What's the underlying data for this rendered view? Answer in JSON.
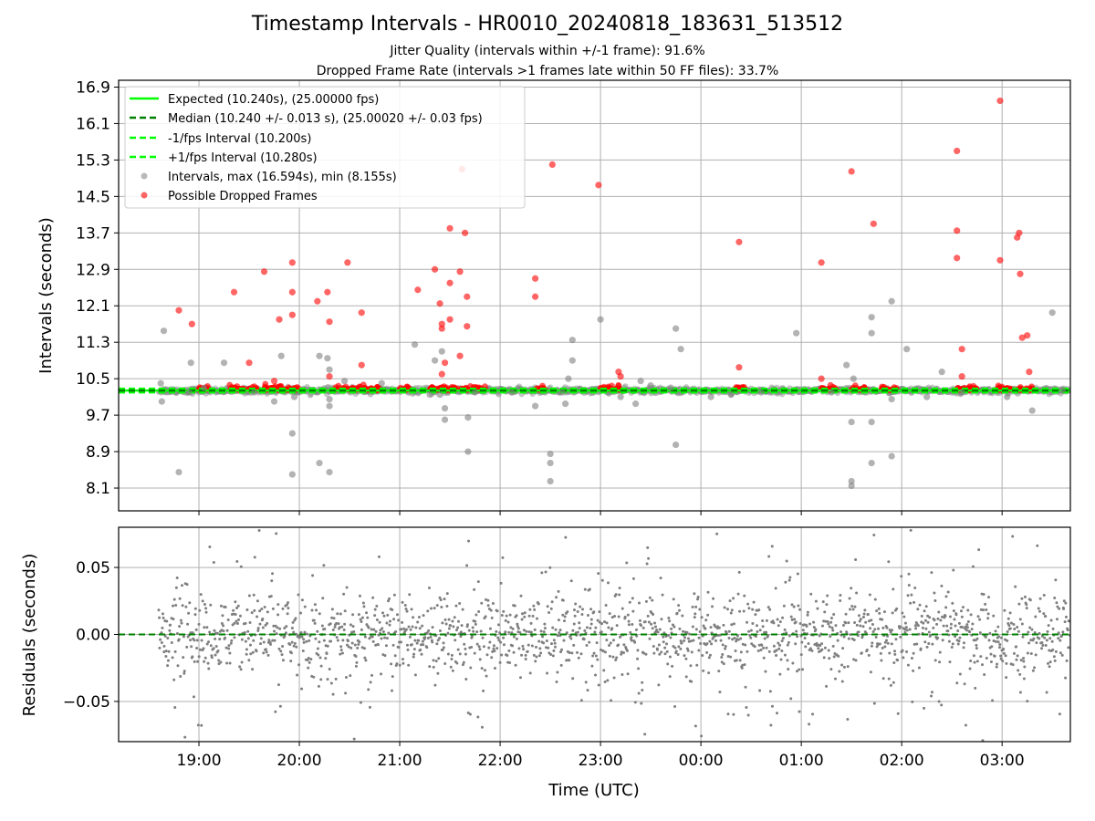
{
  "title": "Timestamp Intervals - HR0010_20240818_183631_513512",
  "subtitle_1": "Jitter Quality (intervals within +/-1 frame): 91.6%",
  "subtitle_2": "Dropped Frame Rate (intervals >1 frames late within 50 FF files): 33.7%",
  "colors": {
    "expected": "#00ff00",
    "median": "#008000",
    "interval_bounds": "#00ff00",
    "intervals": "#808080",
    "dropped": "#ff0000",
    "residuals": "#7f7f7f",
    "grid": "#b0b0b0"
  },
  "chart_data": [
    {
      "type": "scatter",
      "name": "intervals",
      "xlabel": "",
      "ylabel": "Intervals (seconds)",
      "x_range_hours": [
        18.2,
        27.68
      ],
      "ylim": [
        7.6,
        17.05
      ],
      "y_ticks": [
        "8.1",
        "8.9",
        "9.7",
        "10.5",
        "11.3",
        "12.1",
        "12.9",
        "13.7",
        "14.5",
        "15.3",
        "16.1",
        "16.9"
      ],
      "grid": true,
      "legend_position": "upper-left",
      "legend": [
        "Expected (10.240s), (25.00000 fps)",
        "Median (10.240 +/- 0.013 s), (25.00020 +/- 0.03 fps)",
        "-1/fps Interval (10.200s)",
        "+1/fps Interval (10.280s)",
        "Intervals, max (16.594s), min (8.155s)",
        "Possible Dropped Frames"
      ],
      "lines": {
        "expected": 10.24,
        "median": 10.24,
        "minus_1_fps": 10.2,
        "plus_1_fps": 10.28
      },
      "intervals_outliers": [
        [
          18.65,
          11.55
        ],
        [
          18.62,
          10.4
        ],
        [
          18.63,
          10.0
        ],
        [
          18.8,
          8.45
        ],
        [
          18.92,
          10.85
        ],
        [
          18.9,
          10.2
        ],
        [
          19.25,
          10.85
        ],
        [
          19.05,
          10.3
        ],
        [
          19.55,
          10.2
        ],
        [
          19.82,
          11.0
        ],
        [
          19.75,
          10.0
        ],
        [
          19.93,
          9.3
        ],
        [
          19.93,
          8.4
        ],
        [
          19.95,
          10.1
        ],
        [
          20.2,
          11.0
        ],
        [
          20.28,
          10.95
        ],
        [
          20.3,
          10.7
        ],
        [
          20.3,
          9.9
        ],
        [
          20.2,
          8.65
        ],
        [
          20.3,
          8.45
        ],
        [
          20.3,
          10.05
        ],
        [
          20.45,
          10.45
        ],
        [
          20.82,
          10.4
        ],
        [
          21.15,
          11.25
        ],
        [
          21.3,
          10.15
        ],
        [
          21.35,
          10.9
        ],
        [
          21.4,
          10.15
        ],
        [
          21.45,
          9.85
        ],
        [
          21.45,
          9.6
        ],
        [
          21.42,
          11.1
        ],
        [
          21.68,
          9.65
        ],
        [
          21.68,
          8.9
        ],
        [
          21.75,
          10.2
        ],
        [
          22.12,
          10.2
        ],
        [
          22.35,
          9.9
        ],
        [
          22.5,
          8.65
        ],
        [
          22.5,
          8.85
        ],
        [
          22.5,
          8.25
        ],
        [
          22.62,
          10.2
        ],
        [
          22.65,
          9.95
        ],
        [
          22.68,
          10.5
        ],
        [
          22.72,
          10.9
        ],
        [
          22.72,
          11.35
        ],
        [
          23.0,
          11.8
        ],
        [
          23.2,
          10.1
        ],
        [
          23.35,
          9.95
        ],
        [
          23.4,
          10.45
        ],
        [
          23.5,
          10.35
        ],
        [
          23.7,
          10.3
        ],
        [
          23.75,
          9.05
        ],
        [
          23.75,
          11.6
        ],
        [
          23.8,
          11.15
        ],
        [
          24.1,
          10.1
        ],
        [
          24.3,
          10.15
        ],
        [
          24.6,
          10.2
        ],
        [
          24.95,
          11.5
        ],
        [
          25.3,
          10.2
        ],
        [
          25.45,
          10.8
        ],
        [
          25.5,
          9.55
        ],
        [
          25.5,
          8.25
        ],
        [
          25.5,
          8.15
        ],
        [
          25.52,
          10.5
        ],
        [
          25.7,
          11.85
        ],
        [
          25.7,
          11.5
        ],
        [
          25.7,
          9.55
        ],
        [
          25.7,
          8.65
        ],
        [
          25.9,
          10.05
        ],
        [
          25.9,
          8.8
        ],
        [
          25.9,
          12.2
        ],
        [
          26.05,
          11.15
        ],
        [
          26.25,
          10.1
        ],
        [
          26.4,
          10.65
        ],
        [
          26.6,
          10.2
        ],
        [
          27.05,
          10.1
        ],
        [
          27.3,
          9.8
        ],
        [
          27.5,
          11.95
        ],
        [
          27.6,
          10.25
        ]
      ],
      "dropped_outliers": [
        [
          18.8,
          12.0
        ],
        [
          18.93,
          11.7
        ],
        [
          19.35,
          12.4
        ],
        [
          19.5,
          10.85
        ],
        [
          19.65,
          12.85
        ],
        [
          19.75,
          10.45
        ],
        [
          19.8,
          11.8
        ],
        [
          19.93,
          13.05
        ],
        [
          19.93,
          12.4
        ],
        [
          19.93,
          11.9
        ],
        [
          20.18,
          12.2
        ],
        [
          20.28,
          12.4
        ],
        [
          20.3,
          11.75
        ],
        [
          20.3,
          10.55
        ],
        [
          20.48,
          13.05
        ],
        [
          20.62,
          11.95
        ],
        [
          20.62,
          10.8
        ],
        [
          21.18,
          12.45
        ],
        [
          21.4,
          12.15
        ],
        [
          21.42,
          11.7
        ],
        [
          21.42,
          11.6
        ],
        [
          21.45,
          10.85
        ],
        [
          21.42,
          10.6
        ],
        [
          21.35,
          12.9
        ],
        [
          21.5,
          13.8
        ],
        [
          21.5,
          12.6
        ],
        [
          21.5,
          11.8
        ],
        [
          21.6,
          11.0
        ],
        [
          21.6,
          12.85
        ],
        [
          21.62,
          15.1
        ],
        [
          21.65,
          13.7
        ],
        [
          21.67,
          12.3
        ],
        [
          21.67,
          11.65
        ],
        [
          22.35,
          12.7
        ],
        [
          22.35,
          12.3
        ],
        [
          22.52,
          15.2
        ],
        [
          22.98,
          14.75
        ],
        [
          23.18,
          10.65
        ],
        [
          23.2,
          10.55
        ],
        [
          24.38,
          13.5
        ],
        [
          24.38,
          10.75
        ],
        [
          25.2,
          13.05
        ],
        [
          25.2,
          10.5
        ],
        [
          25.5,
          15.05
        ],
        [
          25.72,
          13.9
        ],
        [
          26.55,
          15.5
        ],
        [
          26.55,
          13.75
        ],
        [
          26.55,
          13.15
        ],
        [
          26.6,
          11.15
        ],
        [
          26.6,
          10.55
        ],
        [
          26.98,
          16.6
        ],
        [
          26.98,
          13.1
        ],
        [
          27.15,
          13.6
        ],
        [
          27.17,
          13.7
        ],
        [
          27.18,
          12.8
        ],
        [
          27.2,
          11.4
        ],
        [
          27.25,
          11.45
        ],
        [
          27.27,
          10.65
        ]
      ],
      "dropped_clusters": [
        [
          19.0,
          19.1
        ],
        [
          19.3,
          19.45
        ],
        [
          19.5,
          19.6
        ],
        [
          19.65,
          20.0
        ],
        [
          20.35,
          20.8
        ],
        [
          21.0,
          21.1
        ],
        [
          21.3,
          21.85
        ],
        [
          22.35,
          22.45
        ],
        [
          23.0,
          23.2
        ],
        [
          24.35,
          24.45
        ],
        [
          25.2,
          25.35
        ],
        [
          25.5,
          25.65
        ],
        [
          25.8,
          25.95
        ],
        [
          26.55,
          26.75
        ],
        [
          26.95,
          27.3
        ]
      ],
      "data_span_hours": [
        18.6,
        27.68
      ]
    },
    {
      "type": "scatter",
      "name": "residuals",
      "xlabel": "Time (UTC)",
      "ylabel": "Residuals (seconds)",
      "x_range_hours": [
        18.2,
        27.68
      ],
      "ylim": [
        -0.08,
        0.08
      ],
      "y_ticks": [
        "0.05",
        "0.00",
        "−0.05"
      ],
      "y_tick_values": [
        0.05,
        0.0,
        -0.05
      ],
      "x_ticks": [
        "19:00",
        "20:00",
        "21:00",
        "22:00",
        "23:00",
        "00:00",
        "01:00",
        "02:00",
        "03:00"
      ],
      "x_tick_values_hours": [
        19,
        20,
        21,
        22,
        23,
        24,
        25,
        26,
        27
      ],
      "grid": true,
      "residuals_spread": 0.014,
      "residuals_wide_spread": 0.045,
      "residuals_count": 1800
    }
  ]
}
